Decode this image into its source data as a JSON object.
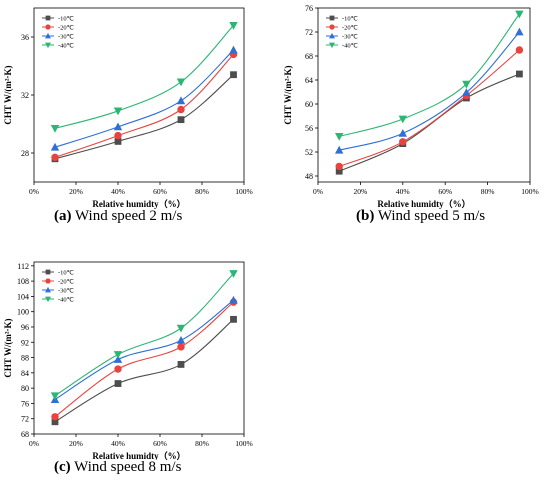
{
  "charts": [
    {
      "id": "a",
      "caption_letter": "(a)",
      "caption_text": " Wind speed 2 m/s",
      "ylabel": "CHT W/(m²·K)",
      "xlabel": "Relative humidty（%）",
      "xlim": [
        0,
        100
      ],
      "ylim": [
        26,
        38
      ],
      "yticks": [
        28,
        32,
        36
      ],
      "xticks": [
        0,
        20,
        40,
        60,
        80,
        100
      ],
      "xtick_labels": [
        "0%",
        "20%",
        "40%",
        "60%",
        "80%",
        "100%"
      ]
    },
    {
      "id": "b",
      "caption_letter": "(b)",
      "caption_text": " Wind speed 5 m/s",
      "ylabel": "CHT W/(m²·K)",
      "xlabel": "Relative humidty（%）",
      "xlim": [
        0,
        100
      ],
      "ylim": [
        47,
        76
      ],
      "yticks": [
        48,
        52,
        56,
        60,
        64,
        68,
        72,
        76
      ],
      "xticks": [
        0,
        20,
        40,
        60,
        80,
        100
      ],
      "xtick_labels": [
        "0%",
        "20%",
        "40%",
        "60%",
        "80%",
        "100%"
      ]
    },
    {
      "id": "c",
      "caption_letter": "(c)",
      "caption_text": " Wind speed 8 m/s",
      "ylabel": "CHT W/(m²·K)",
      "xlabel": "Relative humidty（%）",
      "xlim": [
        0,
        100
      ],
      "ylim": [
        68,
        113
      ],
      "yticks": [
        68,
        72,
        76,
        80,
        84,
        88,
        92,
        96,
        100,
        104,
        108,
        112
      ],
      "xticks": [
        0,
        20,
        40,
        60,
        80,
        100
      ],
      "xtick_labels": [
        "0%",
        "20%",
        "40%",
        "60%",
        "80%",
        "100%"
      ]
    }
  ],
  "chart_data": [
    {
      "type": "line",
      "title": "(a) Wind speed 2 m/s",
      "xlabel": "Relative humidty（%）",
      "ylabel": "CHT W/(m²·K)",
      "x": [
        10,
        40,
        70,
        95
      ],
      "ylim": [
        26,
        38
      ],
      "legend_position": "top-left",
      "series": [
        {
          "name": "-10℃",
          "color": "#4d4d4d",
          "marker": "square",
          "values": [
            27.6,
            28.8,
            30.3,
            33.4
          ]
        },
        {
          "name": "-20℃",
          "color": "#e8433f",
          "marker": "circle",
          "values": [
            27.7,
            29.2,
            31.0,
            34.8
          ]
        },
        {
          "name": "-30℃",
          "color": "#2f6fd6",
          "marker": "triangle-up",
          "values": [
            28.4,
            29.8,
            31.6,
            35.1
          ]
        },
        {
          "name": "-40℃",
          "color": "#2bb673",
          "marker": "triangle-down",
          "values": [
            29.7,
            30.9,
            32.9,
            36.8
          ]
        }
      ]
    },
    {
      "type": "line",
      "title": "(b) Wind speed 5 m/s",
      "xlabel": "Relative humidty（%）",
      "ylabel": "CHT W/(m²·K)",
      "x": [
        10,
        40,
        70,
        95
      ],
      "ylim": [
        47,
        76
      ],
      "legend_position": "top-left",
      "series": [
        {
          "name": "-10℃",
          "color": "#4d4d4d",
          "marker": "square",
          "values": [
            48.8,
            53.4,
            61.0,
            65.0
          ]
        },
        {
          "name": "-20℃",
          "color": "#e8433f",
          "marker": "circle",
          "values": [
            49.6,
            53.7,
            61.4,
            69.0
          ]
        },
        {
          "name": "-30℃",
          "color": "#2f6fd6",
          "marker": "triangle-up",
          "values": [
            52.3,
            55.1,
            61.9,
            72.0
          ]
        },
        {
          "name": "-40℃",
          "color": "#2bb673",
          "marker": "triangle-down",
          "values": [
            54.6,
            57.5,
            63.3,
            75.0
          ]
        }
      ]
    },
    {
      "type": "line",
      "title": "(c) Wind speed 8 m/s",
      "xlabel": "Relative humidty（%）",
      "ylabel": "CHT W/(m²·K)",
      "x": [
        10,
        40,
        70,
        95
      ],
      "ylim": [
        68,
        113
      ],
      "legend_position": "top-left",
      "series": [
        {
          "name": "-10℃",
          "color": "#4d4d4d",
          "marker": "square",
          "values": [
            71.2,
            81.2,
            86.2,
            98.0
          ]
        },
        {
          "name": "-20℃",
          "color": "#e8433f",
          "marker": "circle",
          "values": [
            72.5,
            85.0,
            90.8,
            102.5
          ]
        },
        {
          "name": "-30℃",
          "color": "#2f6fd6",
          "marker": "triangle-up",
          "values": [
            77.0,
            87.5,
            92.5,
            103.0
          ]
        },
        {
          "name": "-40℃",
          "color": "#2bb673",
          "marker": "triangle-down",
          "values": [
            78.0,
            88.8,
            95.7,
            110.0
          ]
        }
      ]
    }
  ]
}
